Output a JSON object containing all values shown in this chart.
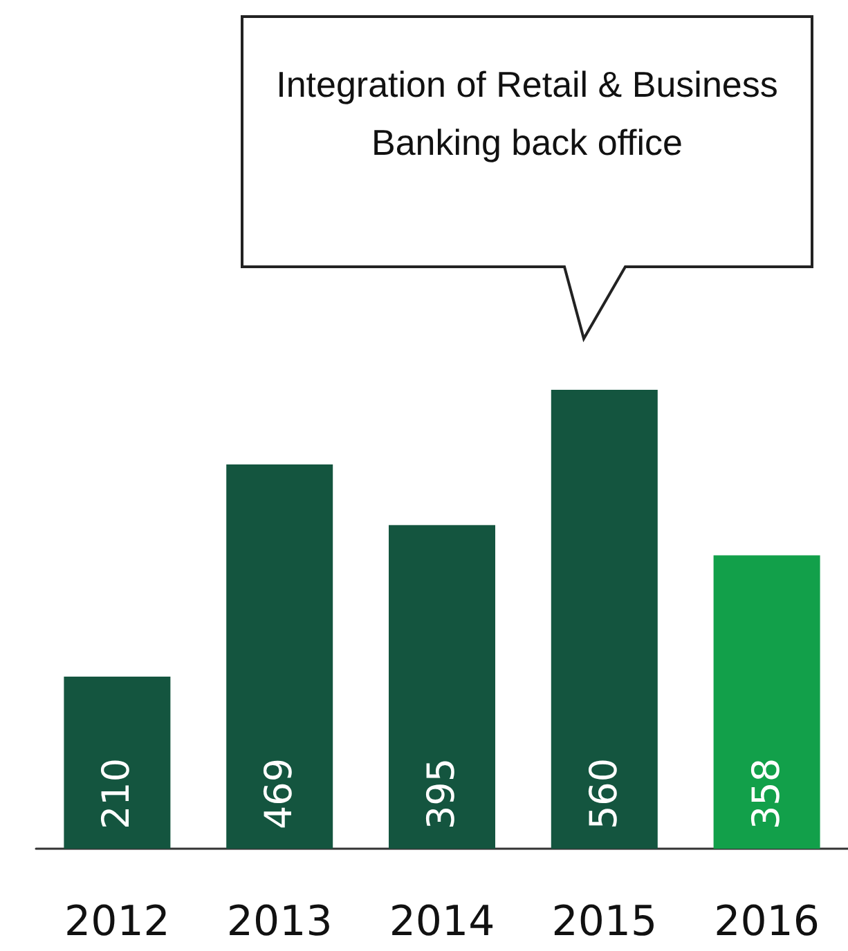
{
  "chart_data": {
    "type": "bar",
    "categories": [
      "2012",
      "2013",
      "2014",
      "2015",
      "2016"
    ],
    "values": [
      210,
      469,
      395,
      560,
      358
    ],
    "colors": [
      "#14553f",
      "#14553f",
      "#14553f",
      "#14553f",
      "#12a04a"
    ],
    "data_labels": true,
    "annotations": [
      "Integration of Retail & Business Banking back office"
    ]
  }
}
